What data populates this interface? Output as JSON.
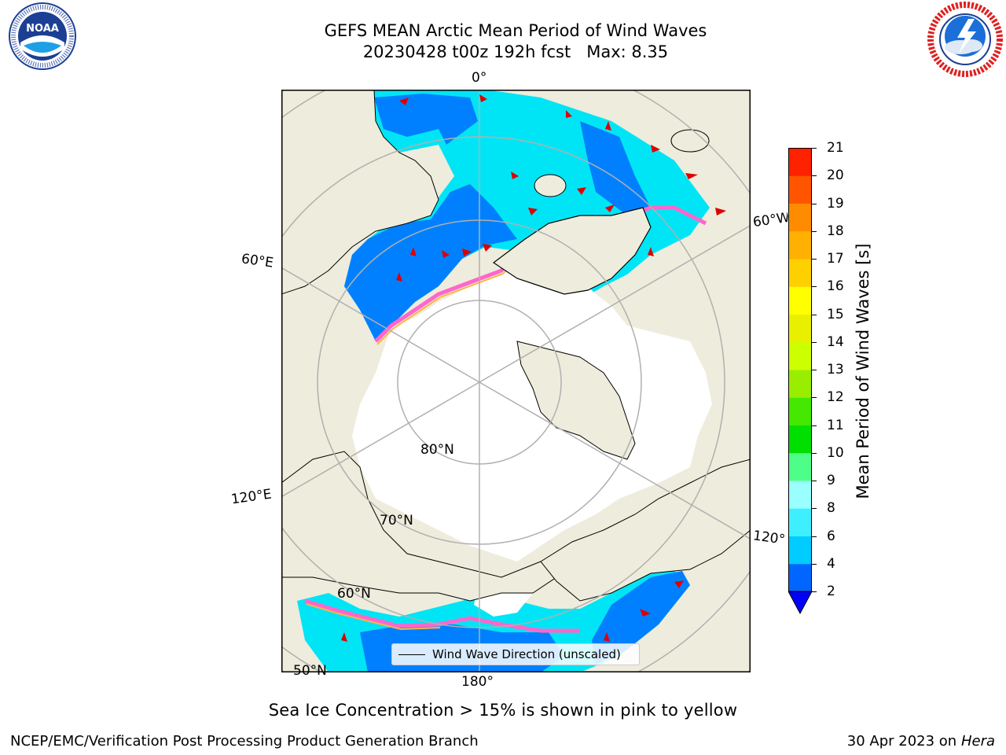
{
  "header": {
    "title": "GEFS MEAN Arctic Mean Period of Wind Waves",
    "subtitle": "20230428 t00z 192h fcst   Max: 8.35"
  },
  "logos": {
    "noaa": {
      "text": "NOAA",
      "ring_text": "NATIONAL OCEANIC AND ATMOSPHERIC ADMINISTRATION · U.S. DEPARTMENT OF COMMERCE"
    },
    "nws": {
      "ring_text": "NATIONAL WEATHER SERVICE"
    }
  },
  "map": {
    "lon_labels": [
      "0°",
      "60°E",
      "120°E",
      "180°",
      "120°",
      "60°W"
    ],
    "lat_labels": [
      "80°N",
      "70°N",
      "60°N",
      "50°N"
    ],
    "colors": {
      "land": "#eeecdc",
      "ocean_light": "#00e5f5",
      "ocean_dark": "#0080ff",
      "ice": "#ffffff",
      "ice_edge_pink": "#ff66cc",
      "ice_edge_orange": "#ffb347",
      "arrow": "#dd0000",
      "grid": "#b0b0b0"
    },
    "legend": "Wind Wave Direction (unscaled)"
  },
  "colorbar": {
    "label": "Mean Period of Wind Waves [s]",
    "ticks": [
      "2",
      "4",
      "6",
      "8",
      "9",
      "10",
      "11",
      "12",
      "13",
      "14",
      "15",
      "16",
      "17",
      "18",
      "19",
      "20",
      "21"
    ],
    "colors": [
      "#0066ff",
      "#00ccff",
      "#3ef0ff",
      "#99ffff",
      "#4dff88",
      "#00e000",
      "#44e800",
      "#99ee00",
      "#ccff00",
      "#e8f000",
      "#ffff00",
      "#ffd000",
      "#ffb000",
      "#ff8c00",
      "#ff5500",
      "#ff2200",
      "#ff0000"
    ],
    "extend_color": "#0000ff"
  },
  "note": "Sea Ice Concentration > 15% is shown in pink to yellow",
  "footer": {
    "left": "NCEP/EMC/Verification Post Processing Product Generation Branch",
    "right_prefix": "30 Apr 2023 on ",
    "right_machine": "Hera"
  }
}
